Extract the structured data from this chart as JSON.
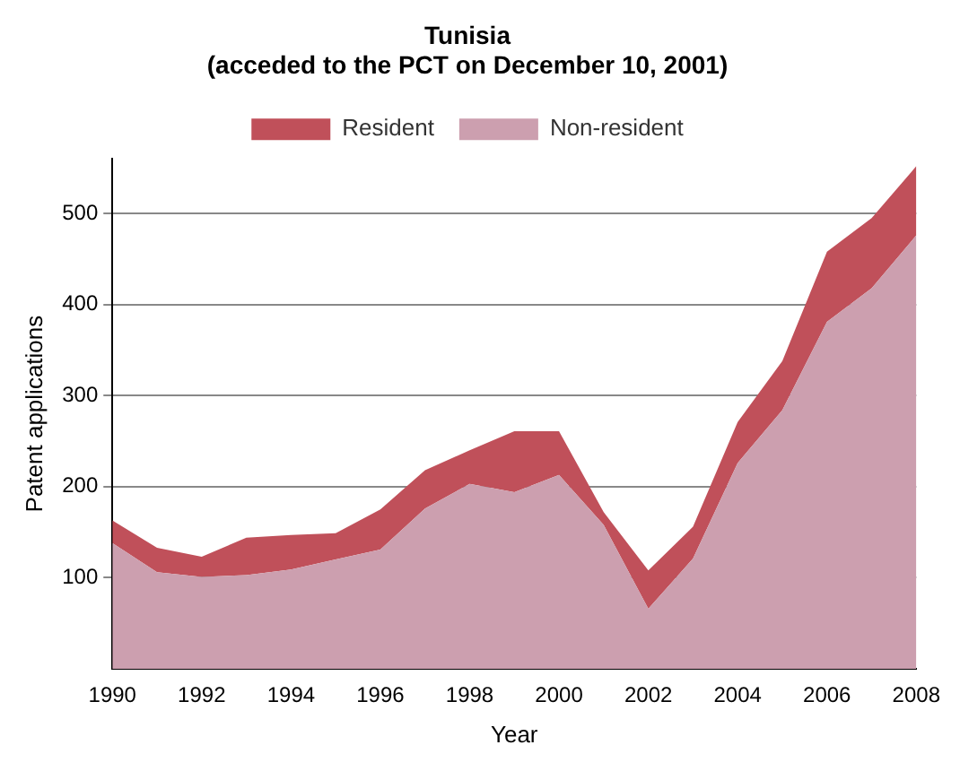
{
  "chart_data": {
    "type": "area",
    "title": "Tunisia\n(acceded to the PCT on December 10, 2001)",
    "xlabel": "Year",
    "ylabel": "Patent applications",
    "x": [
      1990,
      1991,
      1992,
      1993,
      1994,
      1995,
      1996,
      1997,
      1998,
      1999,
      2000,
      2001,
      2002,
      2003,
      2004,
      2005,
      2006,
      2007,
      2008
    ],
    "stacked": true,
    "series": [
      {
        "name": "Non-resident",
        "color": "#cc9faf",
        "values": [
          138,
          106,
          101,
          103,
          109,
          120,
          131,
          176,
          203,
          194,
          213,
          158,
          66,
          121,
          226,
          284,
          381,
          418,
          476
        ]
      },
      {
        "name": "Resident",
        "color": "#c0505a",
        "values": [
          25,
          27,
          22,
          41,
          38,
          29,
          44,
          42,
          37,
          67,
          48,
          14,
          42,
          35,
          45,
          54,
          77,
          77,
          76
        ]
      }
    ],
    "xlim": [
      1990,
      2008
    ],
    "xticks": [
      1990,
      1992,
      1994,
      1996,
      1998,
      2000,
      2002,
      2004,
      2006,
      2008
    ],
    "ylim": [
      0,
      560
    ],
    "yticks": [
      100,
      200,
      300,
      400,
      500
    ],
    "grid": "y",
    "legend": "top"
  }
}
